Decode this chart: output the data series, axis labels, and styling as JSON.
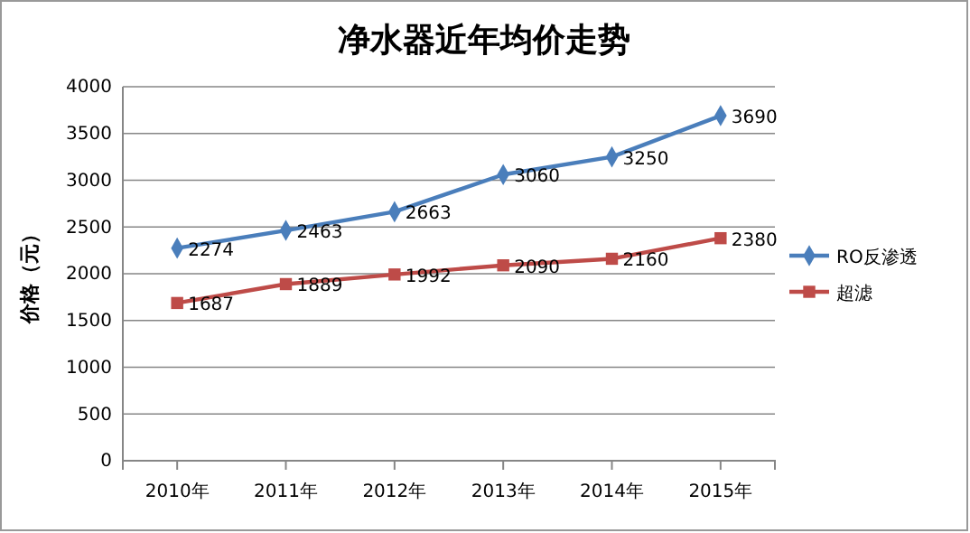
{
  "chart_data": {
    "type": "line",
    "title": "净水器近年均价走势",
    "ylabel": "价格（元）",
    "categories": [
      "2010年",
      "2011年",
      "2012年",
      "2013年",
      "2014年",
      "2015年"
    ],
    "series": [
      {
        "name": "RO反渗透",
        "color": "#4a7ebb",
        "marker": "diamond",
        "values": [
          2274,
          2463,
          2663,
          3060,
          3250,
          3690
        ]
      },
      {
        "name": "超滤",
        "color": "#be4b48",
        "marker": "square",
        "values": [
          1687,
          1889,
          1992,
          2090,
          2160,
          2380
        ]
      }
    ],
    "ylim": [
      0,
      4000
    ],
    "yticks": [
      0,
      500,
      1000,
      1500,
      2000,
      2500,
      3000,
      3500,
      4000
    ],
    "grid": "y",
    "legend": "right",
    "data_labels": true,
    "line_style": "solid"
  }
}
